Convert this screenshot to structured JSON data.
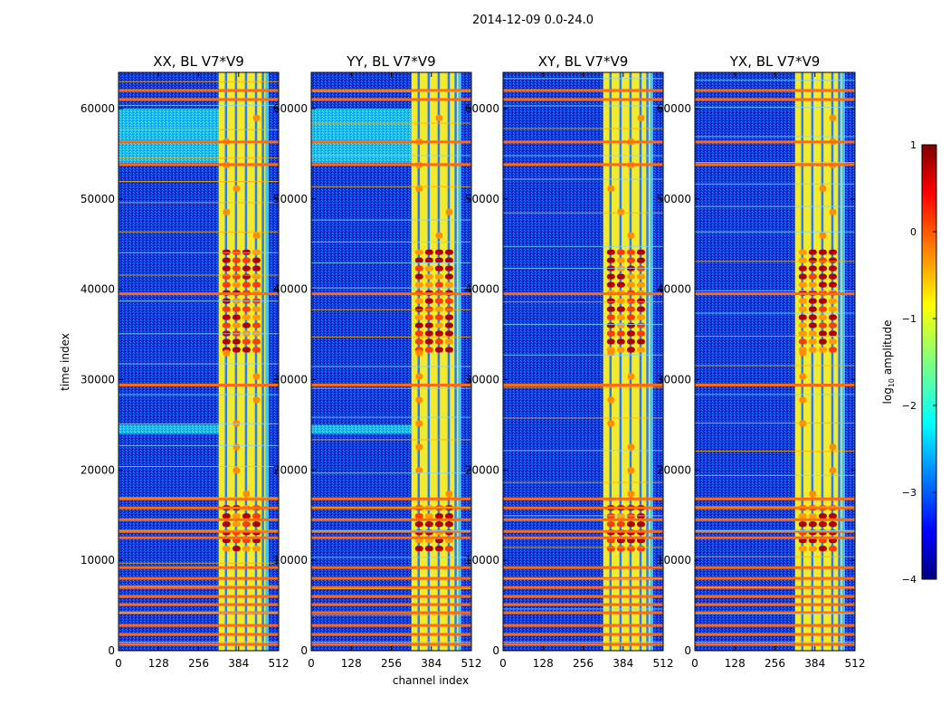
{
  "chart_data": {
    "type": "heatmap",
    "suptitle": "2014-12-09 0.0-24.0",
    "panels": [
      {
        "title": "XX, BL V7*V9"
      },
      {
        "title": "YY, BL V7*V9"
      },
      {
        "title": "XY, BL V7*V9"
      },
      {
        "title": "YX, BL V7*V9"
      }
    ],
    "xlabel": "channel index",
    "ylabel": "time index",
    "xlim": [
      0,
      512
    ],
    "ylim": [
      0,
      64000
    ],
    "xticks": [
      0,
      128,
      256,
      384,
      512
    ],
    "yticks": [
      0,
      10000,
      20000,
      30000,
      40000,
      50000,
      60000
    ],
    "colorbar": {
      "label": "log10 amplitude",
      "label_main": "log",
      "label_sub": "10",
      "label_rest": " amplitude",
      "range": [
        -4,
        1
      ],
      "ticks": [
        1,
        0,
        -1,
        -2,
        -3,
        -4
      ],
      "tick_labels": [
        "1",
        "0",
        "−1",
        "−2",
        "−3",
        "−4"
      ],
      "colormap": "jet"
    },
    "features": {
      "bright_channel_band": [
        320,
        470
      ],
      "hot_time_rows": [
        700,
        1800,
        2800,
        4200,
        5100,
        6000,
        7000,
        8000,
        9200,
        12500,
        13200,
        14500,
        15800,
        16800,
        29400,
        39500,
        53800,
        56300,
        61000,
        62000
      ],
      "cyan_time_blocks_xx_yy": [
        [
          24000,
          25000
        ],
        [
          54000,
          60000
        ]
      ],
      "strong_emission_times": [
        [
          11000,
          16000
        ],
        [
          33000,
          44000
        ]
      ]
    }
  },
  "colors": {
    "low": "#00008f",
    "background": "#0a3dde",
    "mid": "#00bfff",
    "band": "#f2ee2a",
    "hot": "#ff5a00",
    "max": "#7f0000"
  }
}
